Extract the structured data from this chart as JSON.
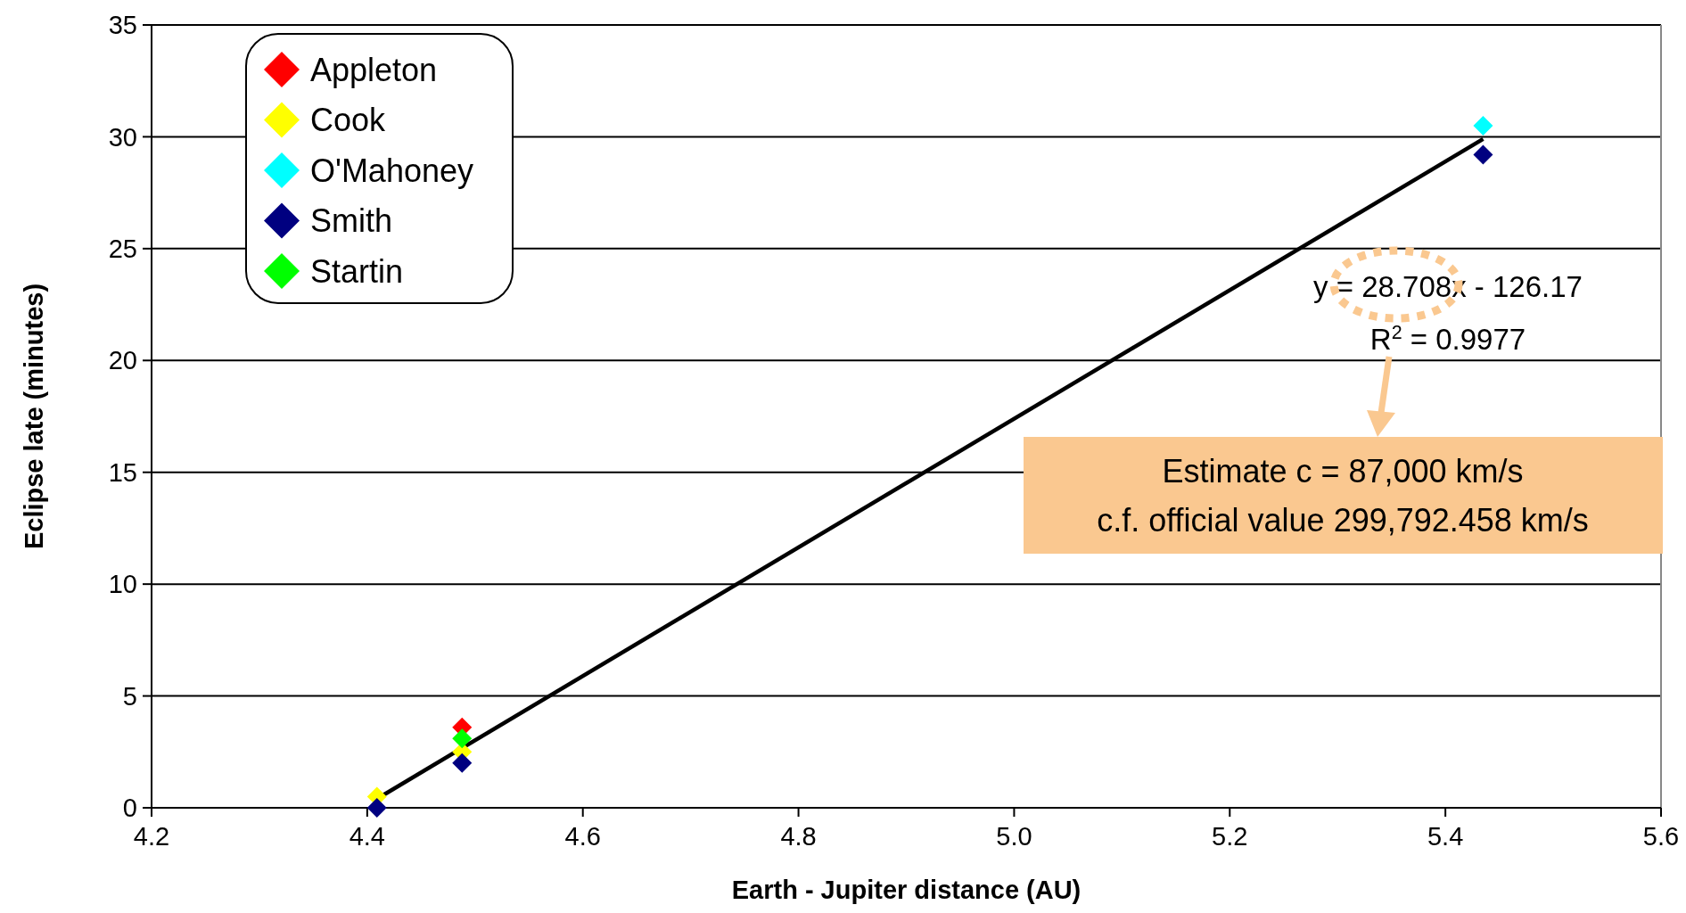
{
  "chart_data": {
    "type": "scatter",
    "xlabel": "Earth - Jupiter distance (AU)",
    "ylabel": "Eclipse late (minutes)",
    "xlim": [
      4.2,
      5.6
    ],
    "xticks": [
      {
        "value": 4.2,
        "label": "4.2"
      },
      {
        "value": 4.4,
        "label": "4.4"
      },
      {
        "value": 4.6,
        "label": "4.6"
      },
      {
        "value": 4.8,
        "label": "4.8"
      },
      {
        "value": 5.0,
        "label": "5.0"
      },
      {
        "value": 5.2,
        "label": "5.2"
      },
      {
        "value": 5.4,
        "label": "5.4"
      },
      {
        "value": 5.6,
        "label": "5.6"
      }
    ],
    "ylim": [
      0,
      35
    ],
    "yticks": [
      0,
      5,
      10,
      15,
      20,
      25,
      30,
      35
    ],
    "grid": "y",
    "legend": "top left",
    "marker": "diamond",
    "series": [
      {
        "name": "Appleton",
        "color": "#ff0000",
        "x": [
          4.488
        ],
        "values": [
          3.6
        ]
      },
      {
        "name": "Cook",
        "color": "#ffff00",
        "x": [
          4.409,
          4.488
        ],
        "values": [
          0.5,
          2.5
        ]
      },
      {
        "name": "O'Mahoney",
        "color": "#00ffff",
        "x": [
          5.435
        ],
        "values": [
          30.5
        ]
      },
      {
        "name": "Smith",
        "color": "#000080",
        "x": [
          4.409,
          4.488,
          5.435
        ],
        "values": [
          0,
          2.0,
          29.2
        ]
      },
      {
        "name": "Startin",
        "color": "#00ff00",
        "x": [
          4.488
        ],
        "values": [
          3.1
        ]
      },
      {
        "type": "line",
        "marker": "none",
        "color": "#000000",
        "x": [
          4.409,
          5.435
        ],
        "values": [
          0.4,
          29.9
        ]
      }
    ],
    "annotations": [
      "y = 28.708x - 126.17",
      "R$^{2}$ = 0.9977",
      "Estimate c =  87,000 km/s",
      "c.f. official value  299,792.458 km/s"
    ]
  }
}
